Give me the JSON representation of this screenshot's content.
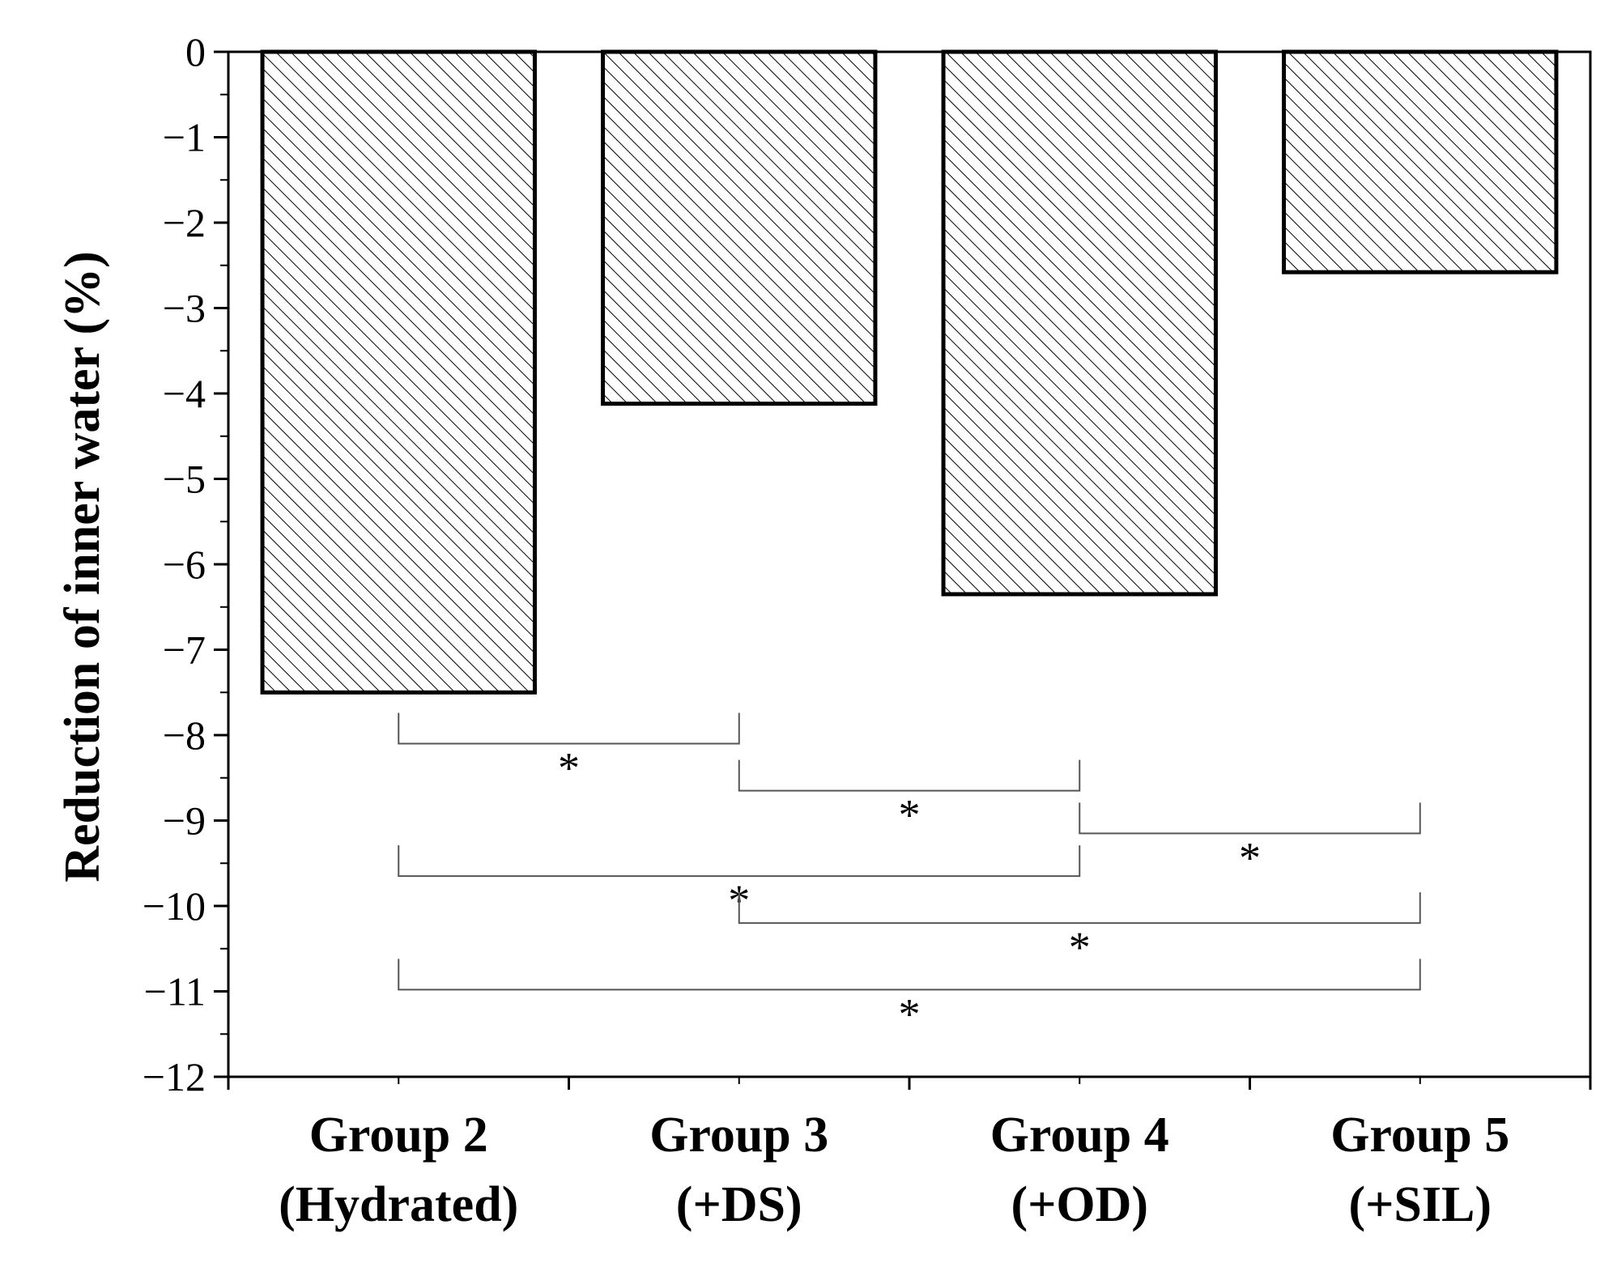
{
  "chart_data": {
    "type": "bar",
    "title": "",
    "xlabel": "",
    "ylabel": "Reduction of inner water (%)",
    "ylim": [
      -12,
      0
    ],
    "yticks": [
      0,
      -1,
      -2,
      -3,
      -4,
      -5,
      -6,
      -7,
      -8,
      -9,
      -10,
      -11,
      -12
    ],
    "ytick_labels": [
      "0",
      "−1",
      "−2",
      "−3",
      "−4",
      "−5",
      "−6",
      "−7",
      "−8",
      "−9",
      "−10",
      "−11",
      "−12"
    ],
    "categories": [
      {
        "line1": "Group 2",
        "line2": "(Hydrated)"
      },
      {
        "line1": "Group 3",
        "line2": "(+DS)"
      },
      {
        "line1": "Group 4",
        "line2": "(+OD)"
      },
      {
        "line1": "Group 5",
        "line2": "(+SIL)"
      }
    ],
    "values": [
      -7.5,
      -4.12,
      -6.35,
      -2.58
    ],
    "bar_fill": "diagonal hatch",
    "grid": false,
    "significance": [
      {
        "from": 0,
        "to": 1,
        "level": -8.1,
        "label": "*"
      },
      {
        "from": 1,
        "to": 2,
        "level": -8.65,
        "label": "*"
      },
      {
        "from": 2,
        "to": 3,
        "level": -9.15,
        "label": "*"
      },
      {
        "from": 0,
        "to": 2,
        "level": -9.65,
        "label": "*"
      },
      {
        "from": 1,
        "to": 3,
        "level": -10.2,
        "label": "*"
      },
      {
        "from": 0,
        "to": 3,
        "level": -10.98,
        "label": "*"
      }
    ]
  }
}
